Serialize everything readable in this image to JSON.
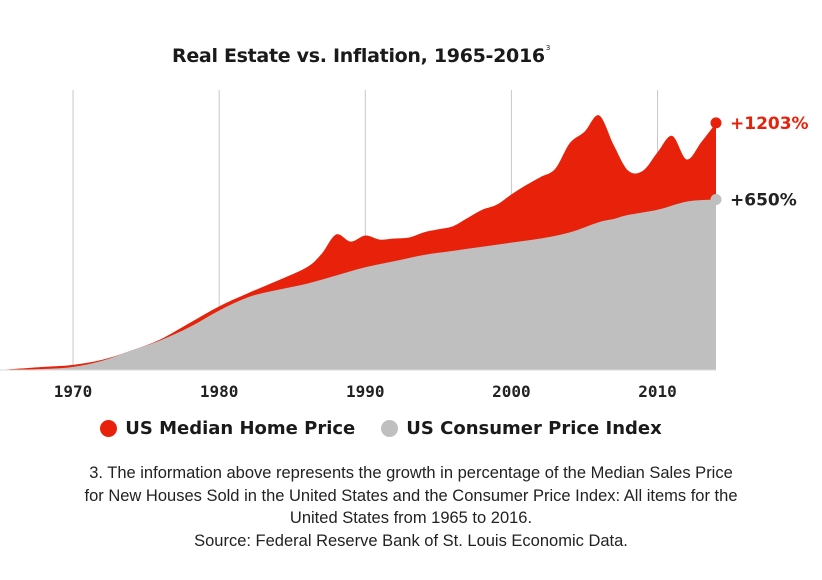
{
  "chart_data": {
    "type": "area",
    "title": "Real Estate vs. Inflation, 1965-2016",
    "title_footnote_mark": "3",
    "x_ticks": [
      1970,
      1980,
      1990,
      2000,
      2010
    ],
    "xlim": [
      1965,
      2014
    ],
    "ylim": [
      0,
      1300
    ],
    "ylabel": "",
    "xlabel": "",
    "grid": "vertical lines at x ticks",
    "legend_position": "bottom",
    "series": [
      {
        "name": "US Median Home Price",
        "color": "#e8220a",
        "end_label": "+1203%",
        "x": [
          1965,
          1968,
          1970,
          1972,
          1974,
          1976,
          1978,
          1980,
          1982,
          1984,
          1986,
          1987,
          1988,
          1989,
          1990,
          1991,
          1992,
          1993,
          1994,
          1995,
          1996,
          1997,
          1998,
          1999,
          2000,
          2001,
          2002,
          2003,
          2004,
          2005,
          2006,
          2007,
          2008,
          2009,
          2010,
          2011,
          2012,
          2013,
          2014
        ],
        "values": [
          0,
          15,
          25,
          50,
          95,
          150,
          230,
          310,
          375,
          435,
          500,
          565,
          660,
          625,
          655,
          635,
          640,
          645,
          670,
          685,
          700,
          740,
          780,
          805,
          855,
          900,
          940,
          980,
          1105,
          1160,
          1240,
          1095,
          970,
          970,
          1060,
          1140,
          1025,
          1110,
          1203
        ]
      },
      {
        "name": "US Consumer Price Index",
        "color": "#bfbfbf",
        "end_label": "+650%",
        "x": [
          1965,
          1968,
          1970,
          1972,
          1974,
          1976,
          1978,
          1980,
          1982,
          1984,
          1986,
          1988,
          1990,
          1992,
          1994,
          1996,
          1998,
          2000,
          2002,
          2004,
          2006,
          2007,
          2008,
          2010,
          2012,
          2014
        ],
        "values": [
          0,
          5,
          15,
          45,
          95,
          145,
          210,
          290,
          355,
          390,
          420,
          460,
          500,
          530,
          560,
          580,
          600,
          620,
          640,
          670,
          720,
          735,
          755,
          780,
          820,
          650
        ]
      }
    ]
  },
  "legend": {
    "items": [
      {
        "label": "US Median Home Price",
        "color": "#e8220a"
      },
      {
        "label": "US Consumer Price Index",
        "color": "#bfbfbf"
      }
    ]
  },
  "footnote": {
    "lines": [
      "3. The information above represents the growth in percentage of the Median Sales Price",
      "for New Houses Sold in the United States and the Consumer Price Index: All items for the",
      "United States from 1965 to 2016.",
      "Source: Federal Reserve Bank of St. Louis Economic Data."
    ]
  }
}
